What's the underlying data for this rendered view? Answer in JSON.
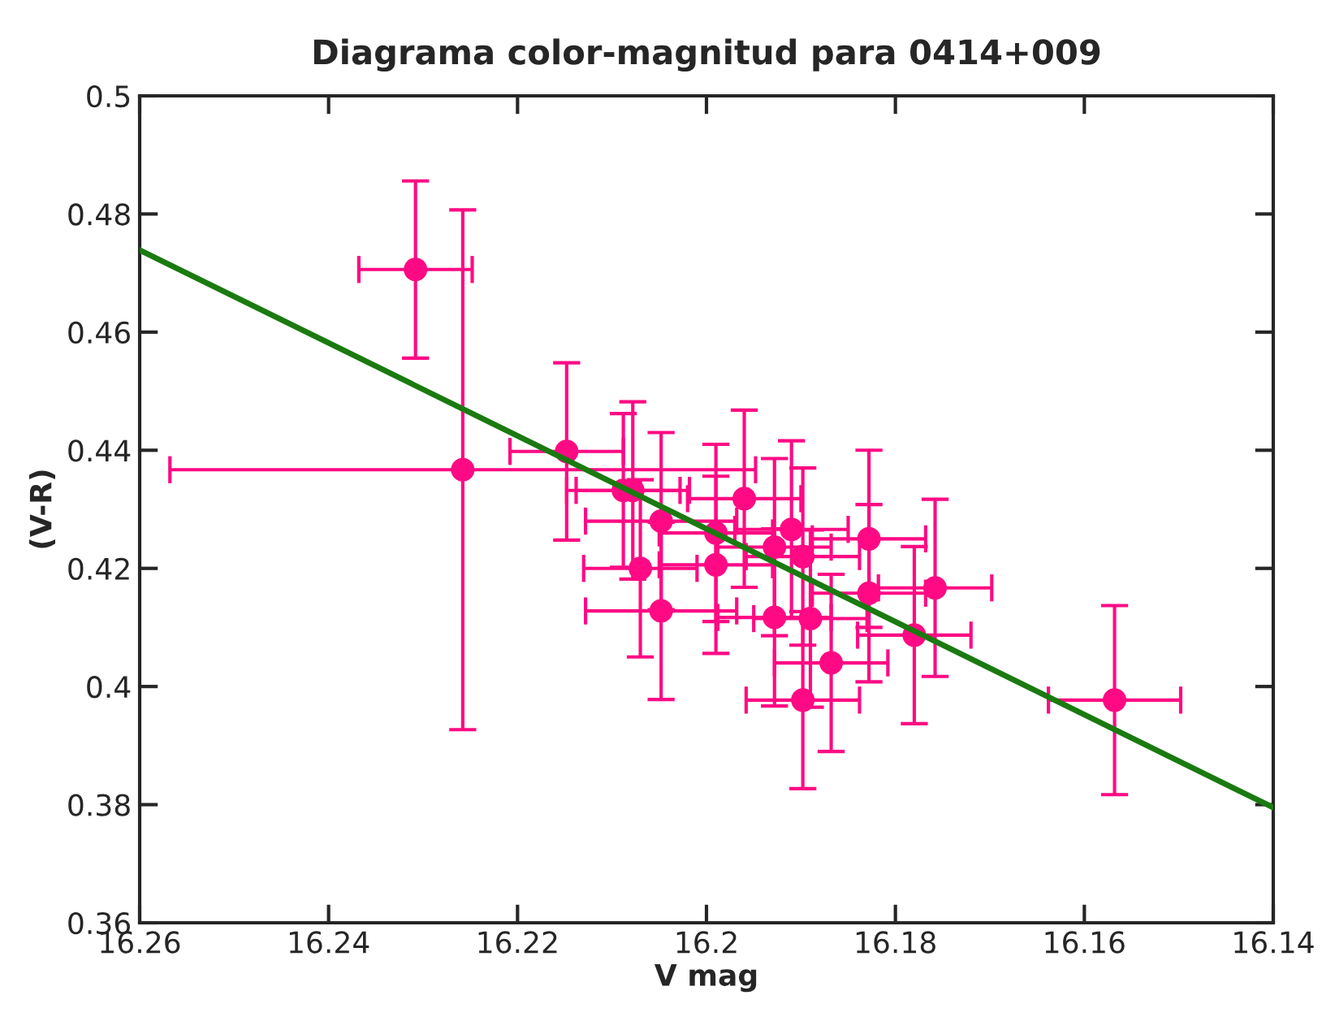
{
  "chart_data": {
    "type": "scatter",
    "title": "Diagrama color-magnitud para 0414+009",
    "xlabel": "V mag",
    "ylabel": "(V-R)",
    "xlim": [
      16.26,
      16.14
    ],
    "xticks": [
      16.26,
      16.24,
      16.22,
      {
        "value": 16.2,
        "label": "16.2"
      },
      16.18,
      16.16,
      16.14
    ],
    "ylim": [
      0.36,
      0.5
    ],
    "yticks": [
      0.36,
      0.38,
      {
        "value": 0.4,
        "label": "0.4"
      },
      0.42,
      0.44,
      0.46,
      0.48,
      {
        "value": 0.5,
        "label": "0.5"
      }
    ],
    "grid": false,
    "legend": false,
    "marker": "circle",
    "series": [
      {
        "color": "#ff0a84",
        "x": [
          16.2308,
          16.2258,
          16.2148,
          16.2088,
          16.2078,
          16.2048,
          16.2048,
          16.207,
          16.199,
          16.199,
          16.196,
          16.1928,
          16.1928,
          16.191,
          16.1898,
          16.1898,
          16.189,
          16.1868,
          16.1828,
          16.1828,
          16.1758,
          16.178,
          16.1568
        ],
        "values": [
          0.4706,
          0.4367,
          0.4398,
          0.4332,
          0.4332,
          0.428,
          0.4128,
          0.42,
          0.426,
          0.4206,
          0.4318,
          0.4236,
          0.4117,
          0.4266,
          0.422,
          0.3977,
          0.4115,
          0.404,
          0.425,
          0.4158,
          0.4167,
          0.4087,
          0.3977
        ],
        "errors": [
          0.015,
          0.044,
          0.015,
          0.013,
          0.015,
          0.015,
          0.015,
          0.015,
          0.015,
          0.015,
          0.015,
          0.015,
          0.015,
          0.015,
          0.015,
          0.015,
          0.015,
          0.015,
          0.015,
          0.015,
          0.015,
          0.015,
          0.016
        ],
        "xerrors": [
          0.006,
          0.031,
          0.006,
          0.006,
          0.006,
          0.008,
          0.008,
          0.006,
          0.006,
          0.006,
          0.006,
          0.006,
          0.006,
          0.006,
          0.006,
          0.006,
          0.006,
          0.006,
          0.006,
          0.006,
          0.006,
          0.006,
          0.007
        ]
      },
      {
        "type": "line",
        "color": "#1a7a10",
        "x": [
          16.26,
          16.14
        ],
        "values": [
          0.4739,
          0.3795
        ],
        "line_style": "solid",
        "marker": "none"
      }
    ]
  }
}
